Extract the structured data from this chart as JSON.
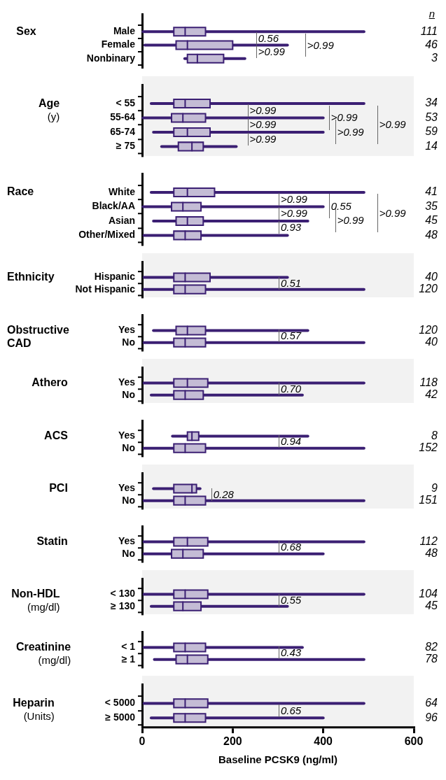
{
  "chart_data": [
    {
      "type": "box",
      "orientation": "horizontal",
      "title": "Sex",
      "color": "#3b1f73",
      "grid": false,
      "tick_labels": "y",
      "xlim": [
        0,
        600
      ],
      "categories": [
        "Male",
        "Female",
        "Nonbinary"
      ],
      "boxes": [
        {
          "low": 2,
          "q1": 70,
          "median": 95,
          "q3": 140,
          "high": 490
        },
        {
          "low": 6,
          "q1": 75,
          "median": 100,
          "q3": 200,
          "high": 321
        },
        {
          "low": 94,
          "q1": 100,
          "median": 122,
          "q3": 180,
          "high": 227
        }
      ],
      "value_labels": [
        "111",
        "46",
        "3"
      ],
      "annotations": [
        "0.56",
        ">0.99",
        ">0.99",
        "n"
      ]
    },
    {
      "type": "box",
      "orientation": "horizontal",
      "title": "Age",
      "subtitle": "(y)",
      "color": "#3b1f73",
      "grid": false,
      "tick_labels": "y",
      "xlim": [
        0,
        600
      ],
      "categories": [
        "< 55",
        "55-64",
        "65-74",
        "≥ 75"
      ],
      "boxes": [
        {
          "low": 20,
          "q1": 70,
          "median": 95,
          "q3": 150,
          "high": 490
        },
        {
          "low": 2,
          "q1": 65,
          "median": 90,
          "q3": 140,
          "high": 400
        },
        {
          "low": 25,
          "q1": 70,
          "median": 100,
          "q3": 150,
          "high": 400
        },
        {
          "low": 43,
          "q1": 80,
          "median": 110,
          "q3": 135,
          "high": 208
        }
      ],
      "value_labels": [
        "34",
        "53",
        "59",
        "14"
      ],
      "annotations": [
        ">0.99",
        ">0.99",
        ">0.99",
        ">0.99",
        ">0.99",
        ">0.99"
      ]
    },
    {
      "type": "box",
      "orientation": "horizontal",
      "title": "Race",
      "color": "#3b1f73",
      "grid": false,
      "tick_labels": "y",
      "xlim": [
        0,
        600
      ],
      "categories": [
        "White",
        "Black/AA",
        "Asian",
        "Other/Mixed"
      ],
      "boxes": [
        {
          "low": 20,
          "q1": 70,
          "median": 100,
          "q3": 160,
          "high": 490
        },
        {
          "low": 2,
          "q1": 65,
          "median": 90,
          "q3": 130,
          "high": 400
        },
        {
          "low": 25,
          "q1": 75,
          "median": 100,
          "q3": 135,
          "high": 366
        },
        {
          "low": 4,
          "q1": 70,
          "median": 95,
          "q3": 130,
          "high": 321
        }
      ],
      "value_labels": [
        "41",
        "35",
        "45",
        "48"
      ],
      "annotations": [
        ">0.99",
        ">0.99",
        "0.93",
        "0.55",
        ">0.99",
        ">0.99"
      ]
    },
    {
      "type": "box",
      "orientation": "horizontal",
      "title": "Ethnicity",
      "color": "#3b1f73",
      "grid": false,
      "tick_labels": "y",
      "xlim": [
        0,
        600
      ],
      "categories": [
        "Hispanic",
        "Not Hispanic"
      ],
      "boxes": [
        {
          "low": 4,
          "q1": 70,
          "median": 95,
          "q3": 150,
          "high": 321
        },
        {
          "low": 4,
          "q1": 70,
          "median": 95,
          "q3": 140,
          "high": 490
        }
      ],
      "value_labels": [
        "40",
        "120"
      ],
      "annotations": [
        "0.51"
      ]
    },
    {
      "type": "box",
      "orientation": "horizontal",
      "title": "Obstructive CAD",
      "color": "#3b1f73",
      "grid": false,
      "tick_labels": "y",
      "xlim": [
        0,
        600
      ],
      "categories": [
        "Yes",
        "No"
      ],
      "boxes": [
        {
          "low": 25,
          "q1": 75,
          "median": 100,
          "q3": 140,
          "high": 366
        },
        {
          "low": 4,
          "q1": 70,
          "median": 95,
          "q3": 140,
          "high": 490
        }
      ],
      "value_labels": [
        "120",
        "40"
      ],
      "annotations": [
        "0.57"
      ]
    },
    {
      "type": "box",
      "orientation": "horizontal",
      "title": "Athero",
      "color": "#3b1f73",
      "grid": false,
      "tick_labels": "y",
      "xlim": [
        0,
        600
      ],
      "categories": [
        "Yes",
        "No"
      ],
      "boxes": [
        {
          "low": 4,
          "q1": 70,
          "median": 100,
          "q3": 145,
          "high": 490
        },
        {
          "low": 20,
          "q1": 70,
          "median": 95,
          "q3": 135,
          "high": 354
        }
      ],
      "value_labels": [
        "118",
        "42"
      ],
      "annotations": [
        "0.70"
      ]
    },
    {
      "type": "box",
      "orientation": "horizontal",
      "title": "ACS",
      "color": "#3b1f73",
      "grid": false,
      "tick_labels": "y",
      "xlim": [
        0,
        600
      ],
      "categories": [
        "Yes",
        "No"
      ],
      "boxes": [
        {
          "low": 67,
          "q1": 100,
          "median": 110,
          "q3": 125,
          "high": 366
        },
        {
          "low": 4,
          "q1": 70,
          "median": 95,
          "q3": 140,
          "high": 490
        }
      ],
      "value_labels": [
        "8",
        "152"
      ],
      "annotations": [
        "0.94"
      ]
    },
    {
      "type": "box",
      "orientation": "horizontal",
      "title": "PCI",
      "color": "#3b1f73",
      "grid": false,
      "tick_labels": "y",
      "xlim": [
        0,
        600
      ],
      "categories": [
        "Yes",
        "No"
      ],
      "boxes": [
        {
          "low": 25,
          "q1": 70,
          "median": 110,
          "q3": 120,
          "high": 128
        },
        {
          "low": 4,
          "q1": 70,
          "median": 95,
          "q3": 140,
          "high": 490
        }
      ],
      "value_labels": [
        "9",
        "151"
      ],
      "annotations": [
        "0.28"
      ]
    },
    {
      "type": "box",
      "orientation": "horizontal",
      "title": "Statin",
      "color": "#3b1f73",
      "grid": false,
      "tick_labels": "y",
      "xlim": [
        0,
        600
      ],
      "categories": [
        "Yes",
        "No"
      ],
      "boxes": [
        {
          "low": 4,
          "q1": 70,
          "median": 100,
          "q3": 145,
          "high": 490
        },
        {
          "low": 4,
          "q1": 65,
          "median": 90,
          "q3": 135,
          "high": 400
        }
      ],
      "value_labels": [
        "112",
        "48"
      ],
      "annotations": [
        "0.68"
      ]
    },
    {
      "type": "box",
      "orientation": "horizontal",
      "title": "Non-HDL",
      "subtitle": "(mg/dl)",
      "color": "#3b1f73",
      "grid": false,
      "tick_labels": "y",
      "xlim": [
        0,
        600
      ],
      "categories": [
        "< 130",
        "≥ 130"
      ],
      "boxes": [
        {
          "low": 4,
          "q1": 70,
          "median": 95,
          "q3": 145,
          "high": 490
        },
        {
          "low": 20,
          "q1": 70,
          "median": 90,
          "q3": 130,
          "high": 321
        }
      ],
      "value_labels": [
        "104",
        "45"
      ],
      "annotations": [
        "0.55"
      ]
    },
    {
      "type": "box",
      "orientation": "horizontal",
      "title": "Creatinine",
      "subtitle": "(mg/dl)",
      "color": "#3b1f73",
      "grid": false,
      "tick_labels": "y",
      "xlim": [
        0,
        600
      ],
      "categories": [
        "< 1",
        "≥ 1"
      ],
      "boxes": [
        {
          "low": 4,
          "q1": 70,
          "median": 95,
          "q3": 140,
          "high": 354
        },
        {
          "low": 27,
          "q1": 75,
          "median": 100,
          "q3": 145,
          "high": 490
        }
      ],
      "value_labels": [
        "82",
        "78"
      ],
      "annotations": [
        "0.43"
      ]
    },
    {
      "type": "box",
      "orientation": "horizontal",
      "title": "Heparin",
      "subtitle": "(Units)",
      "color": "#3b1f73",
      "grid": false,
      "xlim": [
        0,
        600
      ],
      "xticks": [
        0,
        200,
        400,
        600
      ],
      "xlabel": "Baseline PCSK9 (ng/ml)",
      "categories": [
        "< 5000",
        "≥ 5000"
      ],
      "boxes": [
        {
          "low": 4,
          "q1": 70,
          "median": 95,
          "q3": 145,
          "high": 490
        },
        {
          "low": 20,
          "q1": 70,
          "median": 95,
          "q3": 140,
          "high": 400
        }
      ],
      "value_labels": [
        "64",
        "96"
      ],
      "annotations": [
        "0.65"
      ]
    }
  ]
}
